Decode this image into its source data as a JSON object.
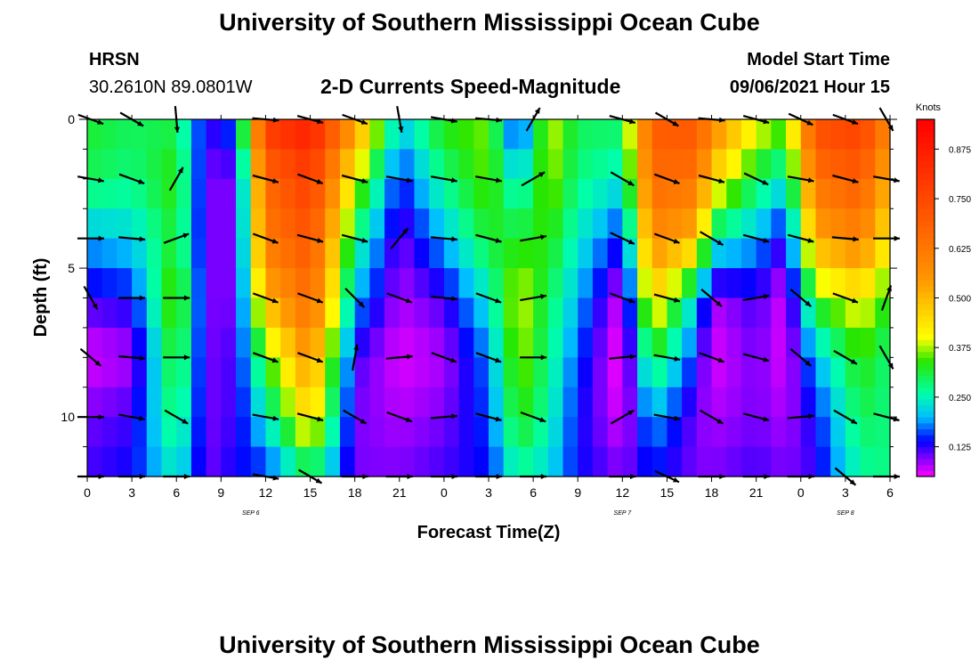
{
  "page": {
    "title_top": "University of Southern Mississippi Ocean Cube",
    "title_bottom": "University of Southern Mississippi Ocean Cube",
    "station": "HRSN",
    "coords": "30.2610N  89.0801W",
    "product": "2-D Currents Speed-Magnitude",
    "model_label": "Model Start Time",
    "model_time": "09/06/2021 Hour 15"
  },
  "chart_data": {
    "type": "heatmap",
    "title": "2-D Currents Speed-Magnitude",
    "xlabel": "Forecast Time(Z)",
    "ylabel": "Depth (ft)",
    "x_hours_range": [
      0,
      54
    ],
    "y_depth_range_ft": [
      0,
      12
    ],
    "x_tick_labels": [
      "0",
      "3",
      "6",
      "9",
      "12",
      "15",
      "18",
      "21",
      "0",
      "3",
      "6",
      "9",
      "12",
      "15",
      "18",
      "21",
      "0",
      "3",
      "6"
    ],
    "y_tick_labels": [
      "0",
      "5",
      "10"
    ],
    "y_tick_values": [
      0,
      5,
      10
    ],
    "date_labels": [
      {
        "text": "SEP 6",
        "hour": 11
      },
      {
        "text": "SEP 7",
        "hour": 36
      },
      {
        "text": "SEP 8",
        "hour": 51
      }
    ],
    "colorbar": {
      "label": "Knots",
      "range": [
        0.05,
        0.95
      ],
      "tick_labels": [
        "0.875",
        "0.750",
        "0.625",
        "0.500",
        "0.375",
        "0.250",
        "0.125"
      ],
      "tick_values": [
        0.875,
        0.75,
        0.625,
        0.5,
        0.375,
        0.25,
        0.125
      ]
    },
    "depth_levels_ft": [
      0,
      2,
      4,
      6,
      8,
      10,
      12
    ],
    "speed_profiles": [
      {
        "hour": 0,
        "speed": [
          0.32,
          0.3,
          0.2,
          0.12,
          0.06,
          0.1,
          0.12
        ]
      },
      {
        "hour": 3,
        "speed": [
          0.3,
          0.28,
          0.22,
          0.14,
          0.08,
          0.12,
          0.14
        ]
      },
      {
        "hour": 6,
        "speed": [
          0.3,
          0.34,
          0.32,
          0.38,
          0.34,
          0.3,
          0.24
        ]
      },
      {
        "hour": 8,
        "speed": [
          0.12,
          0.1,
          0.1,
          0.1,
          0.1,
          0.1,
          0.1
        ]
      },
      {
        "hour": 10,
        "speed": [
          0.18,
          0.1,
          0.1,
          0.1,
          0.12,
          0.12,
          0.14
        ]
      },
      {
        "hour": 12,
        "speed": [
          0.8,
          0.66,
          0.62,
          0.5,
          0.34,
          0.24,
          0.14
        ]
      },
      {
        "hour": 15,
        "speed": [
          0.88,
          0.78,
          0.72,
          0.66,
          0.56,
          0.46,
          0.28
        ]
      },
      {
        "hour": 18,
        "speed": [
          0.56,
          0.4,
          0.28,
          0.2,
          0.12,
          0.1,
          0.1
        ]
      },
      {
        "hour": 21,
        "speed": [
          0.22,
          0.14,
          0.1,
          0.08,
          0.06,
          0.08,
          0.1
        ]
      },
      {
        "hour": 24,
        "speed": [
          0.34,
          0.28,
          0.2,
          0.12,
          0.08,
          0.1,
          0.12
        ]
      },
      {
        "hour": 27,
        "speed": [
          0.36,
          0.36,
          0.32,
          0.24,
          0.18,
          0.16,
          0.14
        ]
      },
      {
        "hour": 29,
        "speed": [
          0.1,
          0.22,
          0.32,
          0.4,
          0.38,
          0.34,
          0.26
        ]
      },
      {
        "hour": 31,
        "speed": [
          0.4,
          0.38,
          0.34,
          0.3,
          0.28,
          0.26,
          0.22
        ]
      },
      {
        "hour": 33,
        "speed": [
          0.3,
          0.28,
          0.24,
          0.2,
          0.16,
          0.14,
          0.14
        ]
      },
      {
        "hour": 36,
        "speed": [
          0.3,
          0.24,
          0.14,
          0.06,
          0.04,
          0.06,
          0.1
        ]
      },
      {
        "hour": 38,
        "speed": [
          0.7,
          0.66,
          0.58,
          0.46,
          0.32,
          0.2,
          0.14
        ]
      },
      {
        "hour": 41,
        "speed": [
          0.72,
          0.64,
          0.5,
          0.22,
          0.14,
          0.1,
          0.1
        ]
      },
      {
        "hour": 42,
        "speed": [
          0.6,
          0.46,
          0.26,
          0.08,
          0.06,
          0.08,
          0.1
        ]
      },
      {
        "hour": 45,
        "speed": [
          0.42,
          0.3,
          0.2,
          0.12,
          0.1,
          0.1,
          0.12
        ]
      },
      {
        "hour": 47,
        "speed": [
          0.36,
          0.24,
          0.12,
          0.06,
          0.06,
          0.08,
          0.1
        ]
      },
      {
        "hour": 49,
        "speed": [
          0.74,
          0.64,
          0.52,
          0.34,
          0.2,
          0.14,
          0.12
        ]
      },
      {
        "hour": 52,
        "speed": [
          0.78,
          0.7,
          0.6,
          0.42,
          0.34,
          0.3,
          0.26
        ]
      },
      {
        "hour": 54,
        "speed": [
          0.6,
          0.5,
          0.42,
          0.32,
          0.28,
          0.28,
          0.28
        ]
      }
    ],
    "vector_columns_hours": [
      0,
      3,
      6,
      12,
      15,
      18,
      21,
      24,
      27,
      30,
      36,
      39,
      42,
      45,
      48,
      51,
      54
    ],
    "vector_rows_depth_ft": [
      0,
      2,
      4,
      6,
      8,
      10,
      12
    ],
    "vector_angles_deg": [
      [
        -20,
        -30,
        -85,
        -5,
        -15,
        -20,
        -80,
        -10,
        -5,
        60,
        -15,
        -30,
        -5,
        -15,
        -25,
        -20,
        -60
      ],
      [
        -10,
        -20,
        60,
        -15,
        -20,
        -15,
        -10,
        -10,
        -10,
        30,
        -30,
        -20,
        -15,
        -25,
        -10,
        -15,
        -10
      ],
      [
        0,
        -5,
        20,
        -20,
        -15,
        -15,
        50,
        -5,
        -15,
        10,
        -25,
        -20,
        -30,
        -15,
        -15,
        -5,
        0
      ],
      [
        -60,
        0,
        0,
        -20,
        -20,
        -45,
        -20,
        -5,
        -20,
        10,
        -20,
        -15,
        -40,
        10,
        -40,
        -20,
        70
      ],
      [
        -40,
        -5,
        0,
        -20,
        -20,
        80,
        5,
        -20,
        -20,
        0,
        5,
        -10,
        -20,
        -15,
        -40,
        -30,
        -60
      ],
      [
        0,
        -10,
        -30,
        -10,
        -15,
        -30,
        -20,
        5,
        -15,
        -20,
        30,
        -10,
        -30,
        -15,
        5,
        -30,
        -15
      ],
      [
        0,
        0,
        0,
        -10,
        -30,
        0,
        0,
        0,
        0,
        0,
        0,
        -25,
        0,
        0,
        0,
        -40,
        0
      ]
    ]
  }
}
